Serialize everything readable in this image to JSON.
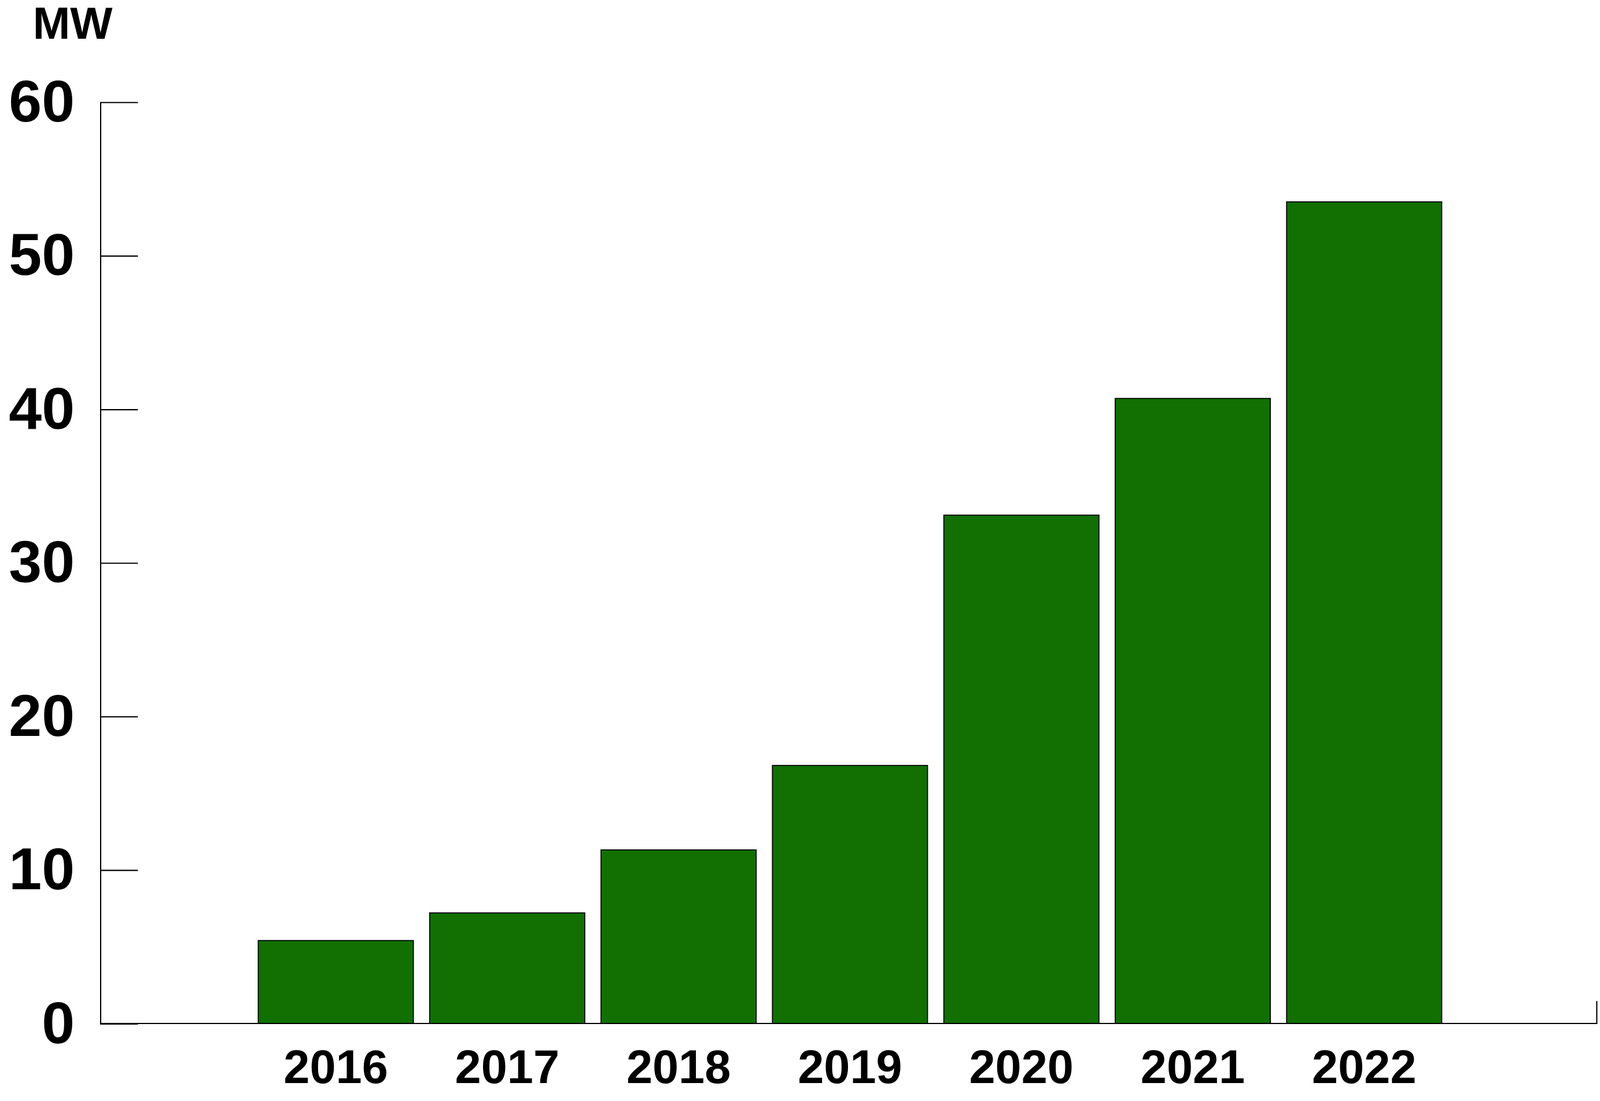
{
  "chart_data": {
    "type": "bar",
    "y_label": "MW",
    "categories": [
      "2016",
      "2017",
      "2018",
      "2019",
      "2020",
      "2021",
      "2022"
    ],
    "values": [
      5.4,
      7.2,
      11.3,
      16.8,
      33.1,
      40.7,
      53.5
    ],
    "color": "#117001",
    "ylim": [
      0,
      60
    ],
    "yticks": [
      0,
      10,
      20,
      30,
      40,
      50,
      60
    ],
    "grid": false
  }
}
